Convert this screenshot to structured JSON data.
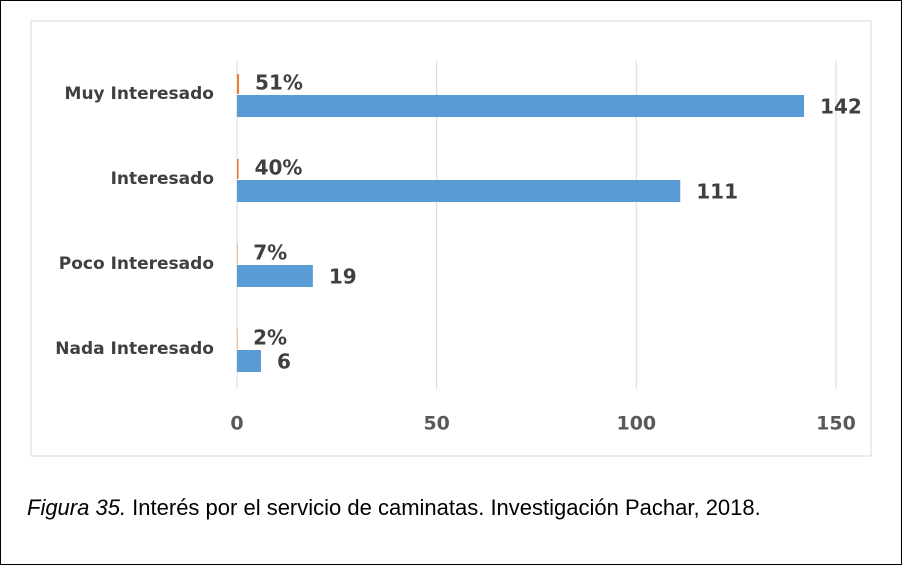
{
  "chart_data": {
    "type": "bar",
    "orientation": "horizontal",
    "categories": [
      "Muy Interesado",
      "Interesado",
      "Poco Interesado",
      "Nada Interesado"
    ],
    "series": [
      {
        "color": "#5b9bd5",
        "values": [
          142,
          111,
          19,
          6
        ]
      },
      {
        "color": "#ed7d31",
        "values": [
          0.51,
          0.4,
          0.07,
          0.02
        ],
        "value_labels": [
          "51%",
          "40%",
          "7%",
          "2%"
        ]
      }
    ],
    "xlim": [
      0,
      150
    ],
    "xticks": [
      0,
      50,
      100,
      150
    ],
    "grid": true
  },
  "caption": {
    "label": "Figura 35.",
    "text": " Interés por el servicio de caminatas. Investigación Pachar, 2018."
  }
}
